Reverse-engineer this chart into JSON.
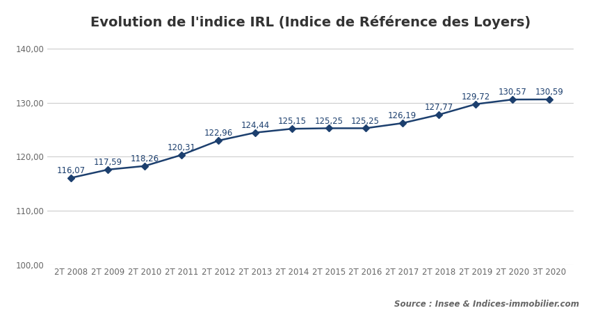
{
  "title": "Evolution de l'indice IRL (Indice de Référence des Loyers)",
  "categories": [
    "2T 2008",
    "2T 2009",
    "2T 2010",
    "2T 2011",
    "2T 2012",
    "2T 2013",
    "2T 2014",
    "2T 2015",
    "2T 2016",
    "2T 2017",
    "2T 2018",
    "2T 2019",
    "2T 2020",
    "3T 2020"
  ],
  "values": [
    116.07,
    117.59,
    118.26,
    120.31,
    122.96,
    124.44,
    125.15,
    125.25,
    125.25,
    126.19,
    127.77,
    129.72,
    130.57,
    130.59
  ],
  "labels": [
    "116,07",
    "117,59",
    "118,26",
    "120,31",
    "122,96",
    "124,44",
    "125,15",
    "125,25",
    "125,25",
    "126,19",
    "127,77",
    "129,72",
    "130,57",
    "130,59"
  ],
  "line_color": "#1c3f6e",
  "marker_color": "#1c3f6e",
  "background_color": "#ffffff",
  "grid_color": "#cccccc",
  "text_color": "#666666",
  "label_color": "#1c3f6e",
  "source_text": "Source : Insee & Indices-immobilier.com",
  "ylim_min": 100.0,
  "ylim_max": 142.0,
  "yticks": [
    100.0,
    110.0,
    120.0,
    130.0,
    140.0
  ],
  "title_fontsize": 14,
  "label_fontsize": 8.5,
  "tick_fontsize": 8.5,
  "source_fontsize": 8.5
}
